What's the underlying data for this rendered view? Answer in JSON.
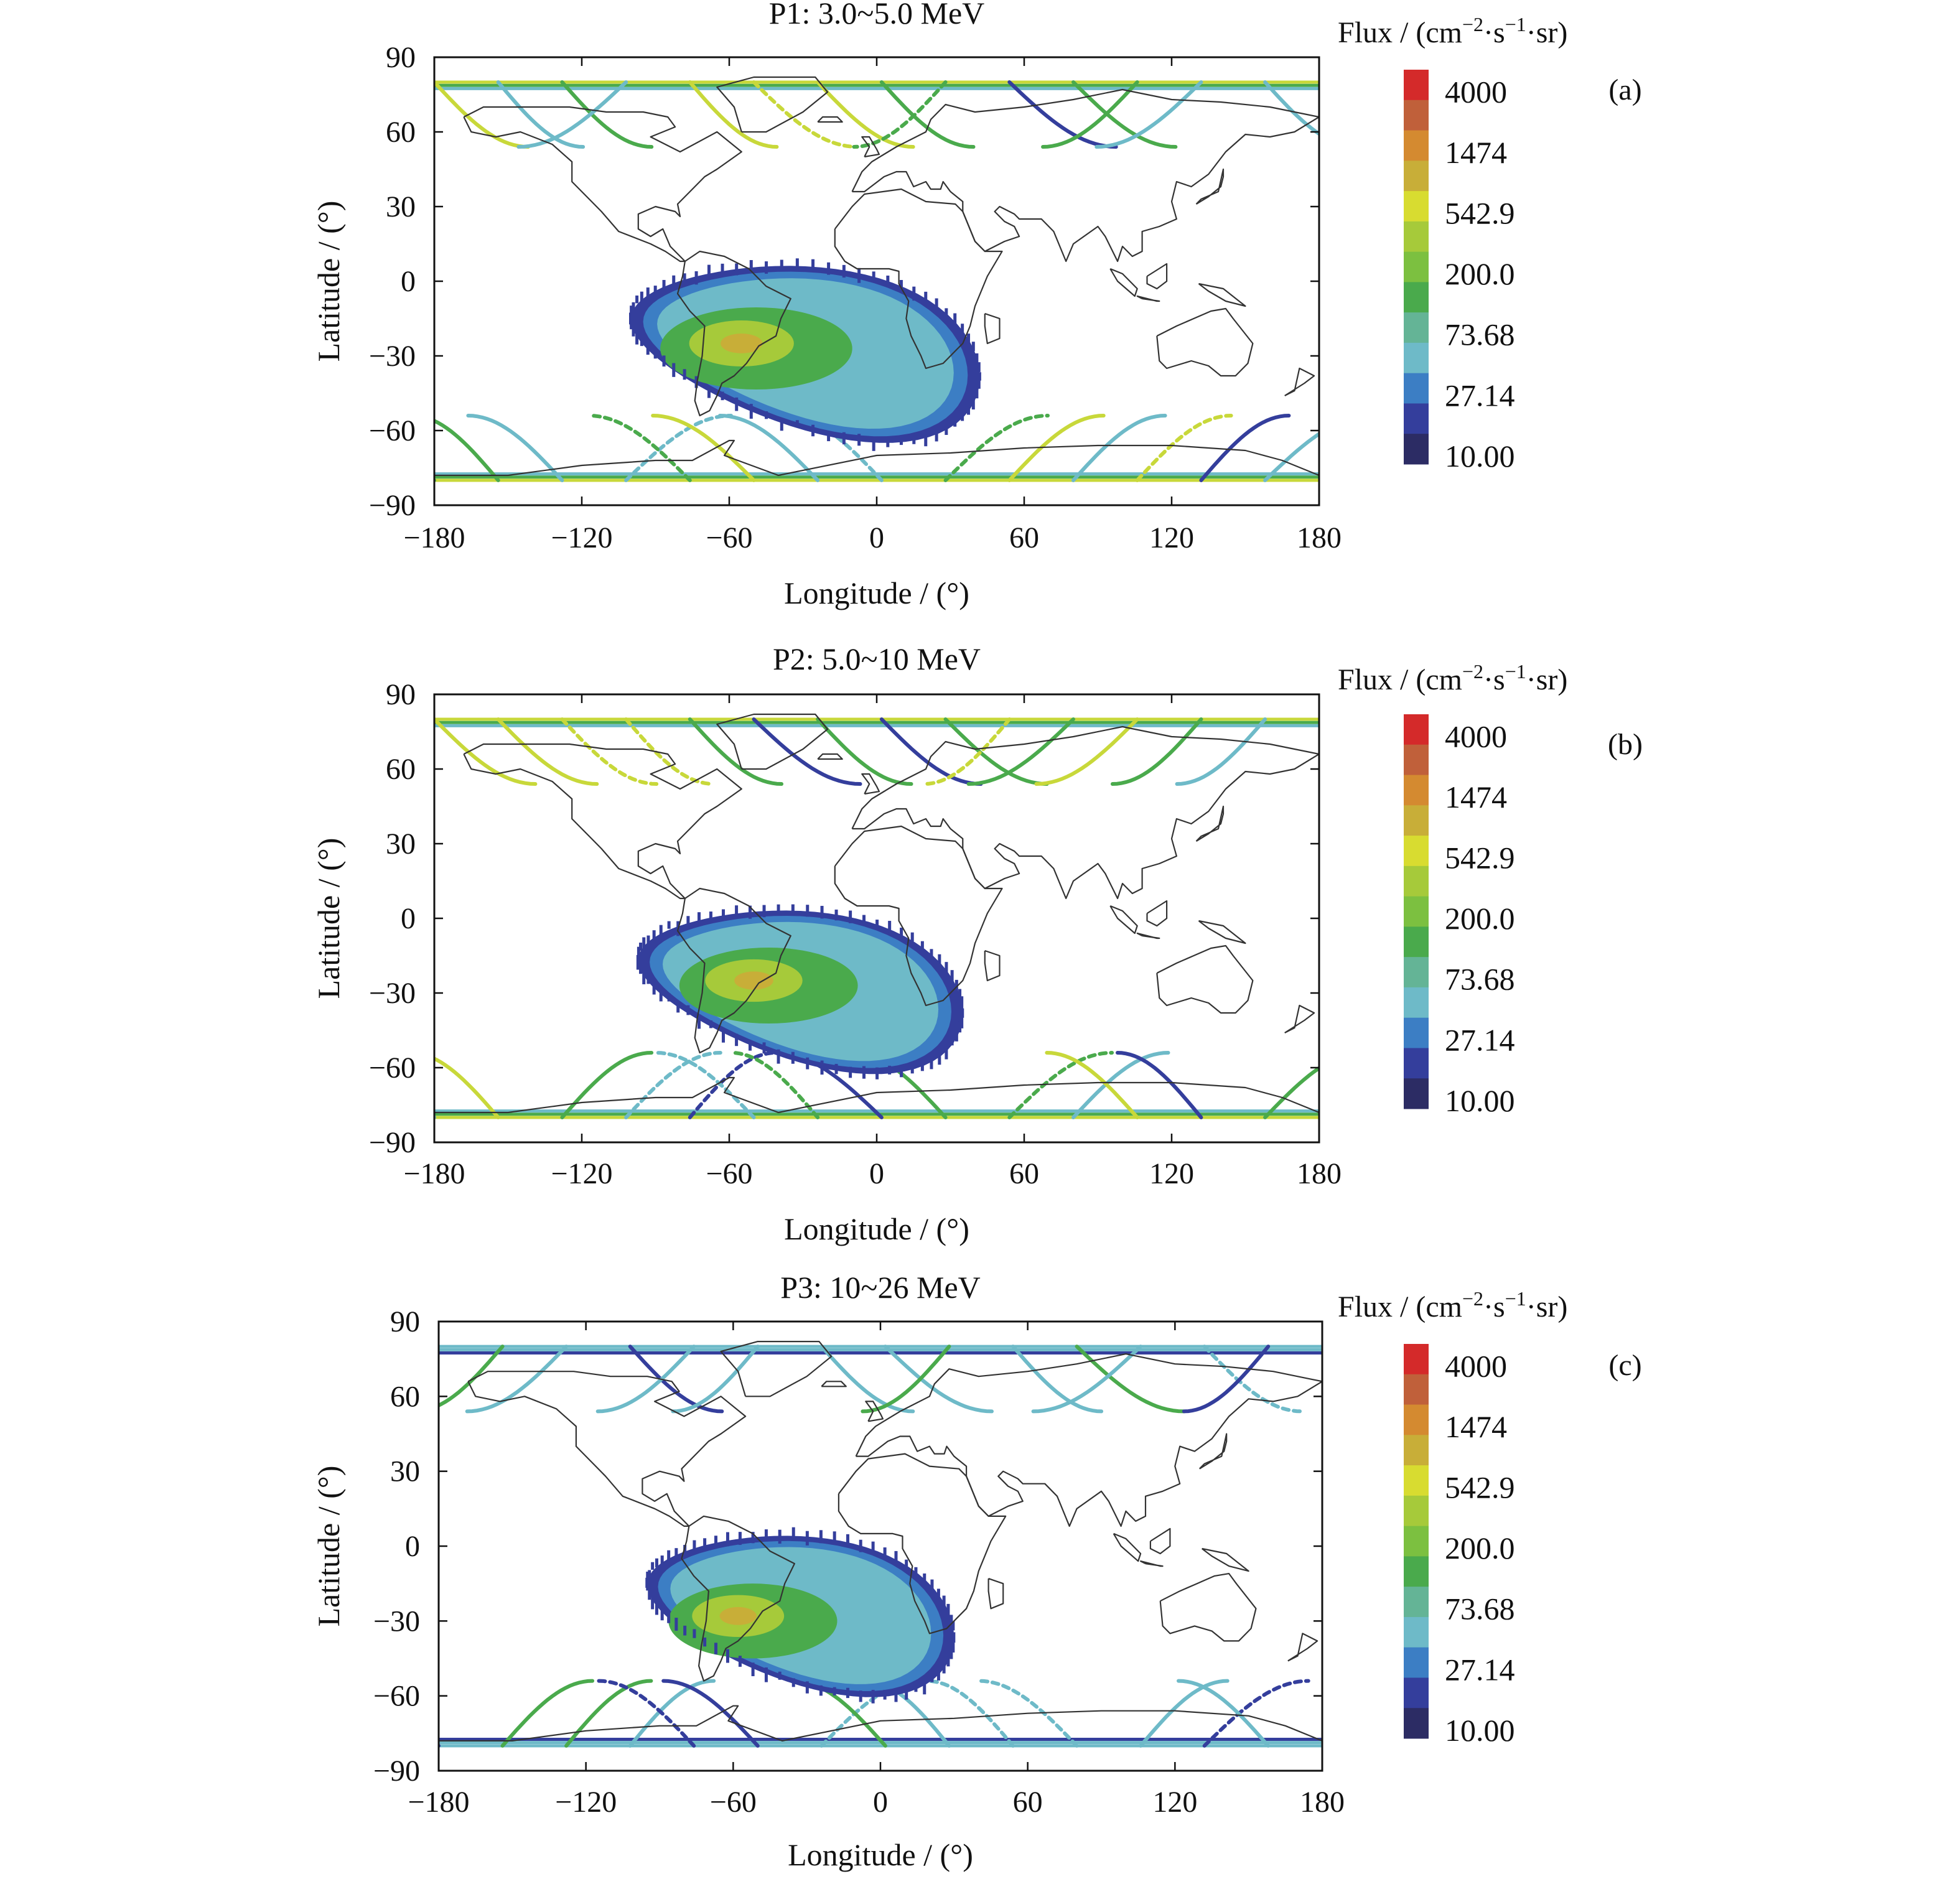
{
  "colorbar": {
    "title_prefix": "Flux / (cm",
    "title_exp1": "−2",
    "title_mid": "·s",
    "title_exp2": "−1",
    "title_suffix": "·sr)",
    "tick_labels": [
      "4000",
      "1474",
      "542.9",
      "200.0",
      "73.68",
      "27.14",
      "10.00"
    ],
    "colors": [
      "#d42a2a",
      "#c0603a",
      "#d48a30",
      "#c8ae38",
      "#d8dc30",
      "#a6ca3a",
      "#7cc040",
      "#4aaa4c",
      "#64b496",
      "#6ebac8",
      "#3c7ec4",
      "#343e9c",
      "#2c2c64"
    ]
  },
  "map_colors": {
    "saa_outer": "#343e9c",
    "saa_mid": "#3c7ec4",
    "saa_body": "#6ebac8",
    "saa_green": "#4aaa4c",
    "saa_core": "#a6ca3a",
    "saa_peak": "#c8ae38",
    "track_dark": "#343e9c",
    "track_cyan": "#6ebac8",
    "track_green": "#4aaa4c",
    "track_yellow": "#c8d83a",
    "coastline": "#333333"
  },
  "chart_data": [
    {
      "type": "heatmap",
      "panel_label": "(a)",
      "title": "P1: 3.0~5.0 MeV",
      "xlabel": "Longitude / (°)",
      "ylabel": "Latitude / (°)",
      "xlim": [
        -180,
        180
      ],
      "ylim": [
        -90,
        90
      ],
      "xticks": [
        "−180",
        "−120",
        "−60",
        "0",
        "60",
        "120",
        "180"
      ],
      "yticks": [
        "90",
        "60",
        "30",
        "0",
        "−30",
        "−60",
        "−90"
      ],
      "saa_region": {
        "lon_range": [
          -100,
          42
        ],
        "lat_range": [
          -60,
          6
        ],
        "peak_lon": -55,
        "peak_lat": -25,
        "peak_flux": 542.9
      },
      "polar_tracks": {
        "north_lat": [
          55,
          82
        ],
        "south_lat": [
          -82,
          -55
        ],
        "typical_flux": [
          73.68,
          542.9
        ]
      }
    },
    {
      "type": "heatmap",
      "panel_label": "(b)",
      "title": "P2: 5.0~10 MeV",
      "xlabel": "Longitude / (°)",
      "ylabel": "Latitude / (°)",
      "xlim": [
        -180,
        180
      ],
      "ylim": [
        -90,
        90
      ],
      "xticks": [
        "−180",
        "−120",
        "−60",
        "0",
        "60",
        "120",
        "180"
      ],
      "yticks": [
        "90",
        "60",
        "30",
        "0",
        "−30",
        "−60",
        "−90"
      ],
      "saa_region": {
        "lon_range": [
          -97,
          35
        ],
        "lat_range": [
          -58,
          3
        ],
        "peak_lon": -50,
        "peak_lat": -25,
        "peak_flux": 542.9
      },
      "polar_tracks": {
        "north_lat": [
          55,
          82
        ],
        "south_lat": [
          -82,
          -55
        ],
        "typical_flux": [
          73.68,
          542.9
        ]
      }
    },
    {
      "type": "heatmap",
      "panel_label": "(c)",
      "title": "P3: 10~26 MeV",
      "xlabel": "Longitude / (°)",
      "ylabel": "Latitude / (°)",
      "xlim": [
        -180,
        180
      ],
      "ylim": [
        -90,
        90
      ],
      "xticks": [
        "−180",
        "−120",
        "−60",
        "0",
        "60",
        "120",
        "180"
      ],
      "yticks": [
        "90",
        "60",
        "30",
        "0",
        "−30",
        "−60",
        "−90"
      ],
      "saa_region": {
        "lon_range": [
          -95,
          30
        ],
        "lat_range": [
          -56,
          4
        ],
        "peak_lon": -58,
        "peak_lat": -28,
        "peak_flux": 542.9
      },
      "polar_tracks": {
        "north_lat": [
          55,
          82
        ],
        "south_lat": [
          -82,
          -55
        ],
        "typical_flux": [
          27.14,
          200.0
        ]
      }
    }
  ]
}
